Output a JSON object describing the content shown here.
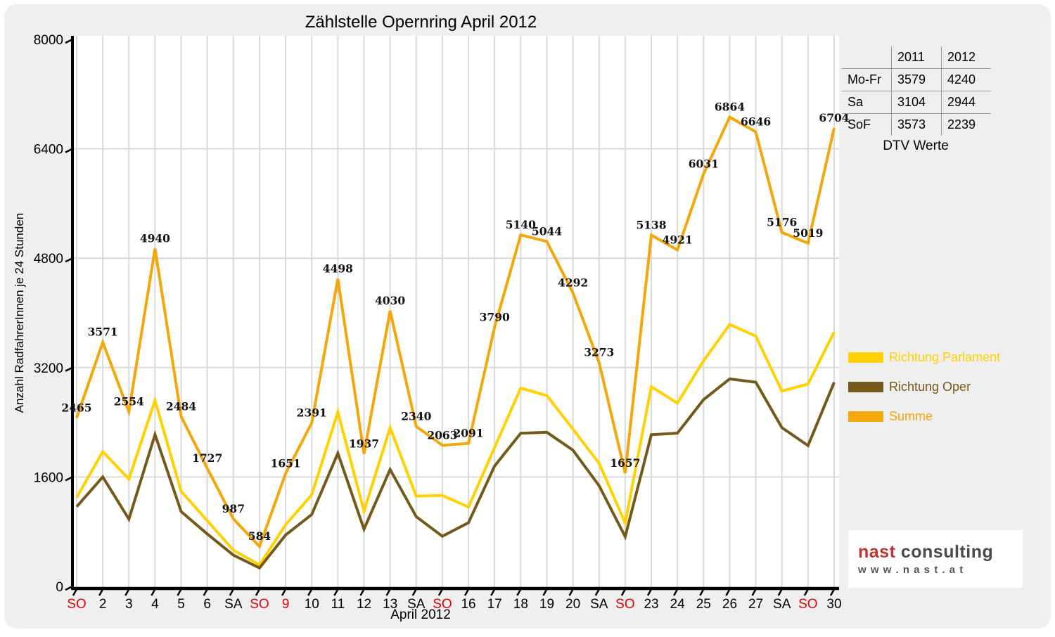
{
  "title": "Zählstelle Opernring April 2012",
  "chart_data": {
    "type": "line",
    "title": "Zählstelle Opernring April 2012",
    "xlabel": "April 2012",
    "ylabel": "Anzahl RadfahrerInnen je 24 Stunden",
    "ylim": [
      0,
      8000
    ],
    "yticks": [
      0,
      1600,
      3200,
      4800,
      6400,
      8000
    ],
    "grid": true,
    "legend_position": "right",
    "categories": [
      "SO",
      "2",
      "3",
      "4",
      "5",
      "6",
      "SA",
      "SO",
      "9",
      "10",
      "11",
      "12",
      "13",
      "SA",
      "SO",
      "16",
      "17",
      "18",
      "19",
      "20",
      "SA",
      "SO",
      "23",
      "24",
      "25",
      "26",
      "27",
      "SA",
      "SO",
      "30"
    ],
    "sunday_holiday_indices": [
      0,
      7,
      8,
      14,
      21,
      28
    ],
    "tick_label_color": "#000000",
    "holiday_label_color": "#e60000",
    "series": [
      {
        "name": "Richtung Parlament",
        "color": "#ffd100",
        "values": [
          1300,
          1970,
          1570,
          2720,
          1390,
          960,
          530,
          314,
          900,
          1340,
          2550,
          1100,
          2320,
          1320,
          1330,
          1160,
          2030,
          2900,
          2790,
          2300,
          1800,
          930,
          2920,
          2680,
          3300,
          3830,
          3660,
          2855,
          2960,
          3720
        ],
        "show_labels": false
      },
      {
        "name": "Richtung Oper",
        "color": "#75591b",
        "values": [
          1165,
          1601,
          984,
          2220,
          1094,
          767,
          457,
          270,
          751,
          1051,
          1948,
          837,
          1710,
          1020,
          733,
          931,
          1760,
          2240,
          2254,
          1992,
          1473,
          727,
          2218,
          2241,
          2731,
          3034,
          2986,
          2321,
          2059,
          2984
        ],
        "show_labels": false
      },
      {
        "name": "Summe",
        "color": "#f3a70a",
        "values": [
          2465,
          3571,
          2554,
          4940,
          2484,
          1727,
          987,
          584,
          1651,
          2391,
          4498,
          1937,
          4030,
          2340,
          2063,
          2091,
          3790,
          5140,
          5044,
          4292,
          3273,
          1657,
          5138,
          4921,
          6031,
          6864,
          6646,
          5176,
          5019,
          6704
        ],
        "show_labels": true
      }
    ]
  },
  "table": {
    "columns": [
      "2011",
      "2012"
    ],
    "rows": [
      {
        "label": "Mo-Fr",
        "values": [
          "3579",
          "4240"
        ]
      },
      {
        "label": "Sa",
        "values": [
          "3104",
          "2944"
        ]
      },
      {
        "label": "SoF",
        "values": [
          "3573",
          "2239"
        ]
      }
    ],
    "caption": "DTV Werte"
  },
  "logo": {
    "brand_part1": "nast",
    "brand_part2": "consulting",
    "url_text": "w w w . n a s t . a t"
  },
  "colors": {
    "background": "#efefef",
    "plot_background": "#ffffff",
    "gridline": "#d9d9d9",
    "axis": "#000000",
    "data_label": "#111111",
    "table_line": "#999999"
  }
}
